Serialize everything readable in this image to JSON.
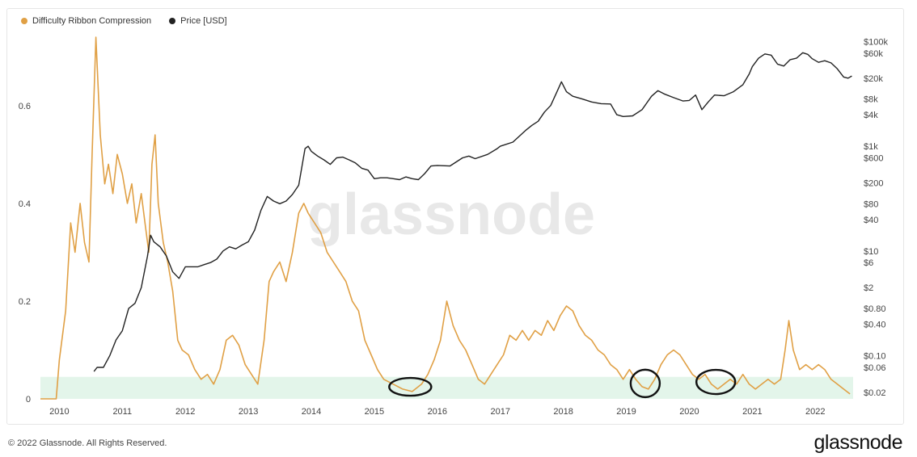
{
  "brand": {
    "watermark": "glassnode",
    "logo": "glassnode",
    "copyright": "© 2022 Glassnode. All Rights Reserved."
  },
  "colors": {
    "ribbon": "#e0a045",
    "price": "#222222",
    "band": "#e3f5ea",
    "circle": "#111111"
  },
  "chart_data": {
    "type": "line",
    "legend_position": "top-left",
    "grid": false,
    "x_range": [
      2009.7,
      2022.6
    ],
    "x_ticks": [
      "2010",
      "2011",
      "2012",
      "2013",
      "2014",
      "2015",
      "2016",
      "2017",
      "2018",
      "2019",
      "2020",
      "2021",
      "2022"
    ],
    "y_left": {
      "range": [
        0,
        0.75
      ],
      "ticks": [
        "0",
        "0.2",
        "0.4",
        "0.6"
      ]
    },
    "y_right": {
      "scale": "log",
      "range": [
        0.015,
        150000
      ],
      "ticks": [
        "$100k",
        "$60k",
        "$20k",
        "$8k",
        "$4k",
        "$1k",
        "$600",
        "$200",
        "$80",
        "$40",
        "$10",
        "$6",
        "$2",
        "$0.80",
        "$0.40",
        "$0.10",
        "$0.06",
        "$0.02"
      ]
    },
    "band": {
      "from": 0,
      "to": 0.045
    },
    "highlights": [
      {
        "x": 2015.57,
        "y": 0.018
      },
      {
        "x": 2019.3,
        "y": 0.025
      },
      {
        "x": 2020.42,
        "y": 0.028
      }
    ],
    "series": [
      {
        "name": "Difficulty Ribbon Compression",
        "axis": "left",
        "points": [
          [
            2009.7,
            0
          ],
          [
            2009.95,
            0
          ],
          [
            2010.0,
            0.08
          ],
          [
            2010.1,
            0.18
          ],
          [
            2010.18,
            0.36
          ],
          [
            2010.25,
            0.3
          ],
          [
            2010.33,
            0.4
          ],
          [
            2010.4,
            0.32
          ],
          [
            2010.47,
            0.28
          ],
          [
            2010.52,
            0.5
          ],
          [
            2010.58,
            0.74
          ],
          [
            2010.65,
            0.54
          ],
          [
            2010.72,
            0.44
          ],
          [
            2010.78,
            0.48
          ],
          [
            2010.85,
            0.42
          ],
          [
            2010.92,
            0.5
          ],
          [
            2011.0,
            0.46
          ],
          [
            2011.08,
            0.4
          ],
          [
            2011.15,
            0.44
          ],
          [
            2011.22,
            0.36
          ],
          [
            2011.3,
            0.42
          ],
          [
            2011.36,
            0.36
          ],
          [
            2011.42,
            0.3
          ],
          [
            2011.47,
            0.48
          ],
          [
            2011.52,
            0.54
          ],
          [
            2011.57,
            0.4
          ],
          [
            2011.65,
            0.32
          ],
          [
            2011.72,
            0.28
          ],
          [
            2011.8,
            0.22
          ],
          [
            2011.88,
            0.12
          ],
          [
            2011.95,
            0.1
          ],
          [
            2012.05,
            0.09
          ],
          [
            2012.15,
            0.06
          ],
          [
            2012.25,
            0.04
          ],
          [
            2012.35,
            0.05
          ],
          [
            2012.45,
            0.03
          ],
          [
            2012.55,
            0.06
          ],
          [
            2012.65,
            0.12
          ],
          [
            2012.75,
            0.13
          ],
          [
            2012.85,
            0.11
          ],
          [
            2012.95,
            0.07
          ],
          [
            2013.05,
            0.05
          ],
          [
            2013.15,
            0.03
          ],
          [
            2013.25,
            0.12
          ],
          [
            2013.33,
            0.24
          ],
          [
            2013.4,
            0.26
          ],
          [
            2013.5,
            0.28
          ],
          [
            2013.6,
            0.24
          ],
          [
            2013.7,
            0.3
          ],
          [
            2013.8,
            0.38
          ],
          [
            2013.88,
            0.4
          ],
          [
            2013.95,
            0.38
          ],
          [
            2014.05,
            0.36
          ],
          [
            2014.15,
            0.34
          ],
          [
            2014.25,
            0.3
          ],
          [
            2014.35,
            0.28
          ],
          [
            2014.45,
            0.26
          ],
          [
            2014.55,
            0.24
          ],
          [
            2014.65,
            0.2
          ],
          [
            2014.75,
            0.18
          ],
          [
            2014.85,
            0.12
          ],
          [
            2014.95,
            0.09
          ],
          [
            2015.05,
            0.06
          ],
          [
            2015.15,
            0.04
          ],
          [
            2015.3,
            0.03
          ],
          [
            2015.45,
            0.02
          ],
          [
            2015.6,
            0.015
          ],
          [
            2015.75,
            0.03
          ],
          [
            2015.85,
            0.05
          ],
          [
            2015.95,
            0.08
          ],
          [
            2016.05,
            0.12
          ],
          [
            2016.15,
            0.2
          ],
          [
            2016.25,
            0.15
          ],
          [
            2016.35,
            0.12
          ],
          [
            2016.45,
            0.1
          ],
          [
            2016.55,
            0.07
          ],
          [
            2016.65,
            0.04
          ],
          [
            2016.75,
            0.03
          ],
          [
            2016.85,
            0.05
          ],
          [
            2016.95,
            0.07
          ],
          [
            2017.05,
            0.09
          ],
          [
            2017.15,
            0.13
          ],
          [
            2017.25,
            0.12
          ],
          [
            2017.35,
            0.14
          ],
          [
            2017.45,
            0.12
          ],
          [
            2017.55,
            0.14
          ],
          [
            2017.65,
            0.13
          ],
          [
            2017.75,
            0.16
          ],
          [
            2017.85,
            0.14
          ],
          [
            2017.95,
            0.17
          ],
          [
            2018.05,
            0.19
          ],
          [
            2018.15,
            0.18
          ],
          [
            2018.25,
            0.15
          ],
          [
            2018.35,
            0.13
          ],
          [
            2018.45,
            0.12
          ],
          [
            2018.55,
            0.1
          ],
          [
            2018.65,
            0.09
          ],
          [
            2018.75,
            0.07
          ],
          [
            2018.85,
            0.06
          ],
          [
            2018.95,
            0.04
          ],
          [
            2019.05,
            0.06
          ],
          [
            2019.15,
            0.04
          ],
          [
            2019.25,
            0.025
          ],
          [
            2019.35,
            0.02
          ],
          [
            2019.45,
            0.04
          ],
          [
            2019.55,
            0.07
          ],
          [
            2019.65,
            0.09
          ],
          [
            2019.75,
            0.1
          ],
          [
            2019.85,
            0.09
          ],
          [
            2019.95,
            0.07
          ],
          [
            2020.05,
            0.05
          ],
          [
            2020.15,
            0.04
          ],
          [
            2020.25,
            0.05
          ],
          [
            2020.35,
            0.03
          ],
          [
            2020.45,
            0.02
          ],
          [
            2020.55,
            0.03
          ],
          [
            2020.65,
            0.04
          ],
          [
            2020.75,
            0.03
          ],
          [
            2020.85,
            0.05
          ],
          [
            2020.95,
            0.03
          ],
          [
            2021.05,
            0.02
          ],
          [
            2021.15,
            0.03
          ],
          [
            2021.25,
            0.04
          ],
          [
            2021.35,
            0.03
          ],
          [
            2021.45,
            0.04
          ],
          [
            2021.52,
            0.1
          ],
          [
            2021.58,
            0.16
          ],
          [
            2021.65,
            0.1
          ],
          [
            2021.75,
            0.06
          ],
          [
            2021.85,
            0.07
          ],
          [
            2021.95,
            0.06
          ],
          [
            2022.05,
            0.07
          ],
          [
            2022.15,
            0.06
          ],
          [
            2022.25,
            0.04
          ],
          [
            2022.35,
            0.03
          ],
          [
            2022.45,
            0.02
          ],
          [
            2022.55,
            0.01
          ]
        ]
      },
      {
        "name": "Price [USD]",
        "axis": "right",
        "points": [
          [
            2010.55,
            0.05
          ],
          [
            2010.6,
            0.06
          ],
          [
            2010.7,
            0.06
          ],
          [
            2010.8,
            0.1
          ],
          [
            2010.9,
            0.2
          ],
          [
            2011.0,
            0.3
          ],
          [
            2011.1,
            0.8
          ],
          [
            2011.2,
            1.0
          ],
          [
            2011.3,
            2.0
          ],
          [
            2011.4,
            8.0
          ],
          [
            2011.45,
            20
          ],
          [
            2011.5,
            15
          ],
          [
            2011.6,
            12
          ],
          [
            2011.7,
            8
          ],
          [
            2011.8,
            4
          ],
          [
            2011.9,
            3
          ],
          [
            2012.0,
            5
          ],
          [
            2012.1,
            5
          ],
          [
            2012.2,
            5
          ],
          [
            2012.3,
            5.5
          ],
          [
            2012.4,
            6
          ],
          [
            2012.5,
            7
          ],
          [
            2012.6,
            10
          ],
          [
            2012.7,
            12
          ],
          [
            2012.8,
            11
          ],
          [
            2012.9,
            13
          ],
          [
            2013.0,
            15
          ],
          [
            2013.1,
            25
          ],
          [
            2013.2,
            60
          ],
          [
            2013.3,
            110
          ],
          [
            2013.4,
            90
          ],
          [
            2013.5,
            80
          ],
          [
            2013.6,
            90
          ],
          [
            2013.7,
            120
          ],
          [
            2013.8,
            180
          ],
          [
            2013.9,
            900
          ],
          [
            2013.95,
            1000
          ],
          [
            2014.0,
            800
          ],
          [
            2014.1,
            650
          ],
          [
            2014.2,
            550
          ],
          [
            2014.3,
            450
          ],
          [
            2014.4,
            600
          ],
          [
            2014.5,
            620
          ],
          [
            2014.6,
            550
          ],
          [
            2014.7,
            480
          ],
          [
            2014.8,
            380
          ],
          [
            2014.9,
            350
          ],
          [
            2015.0,
            240
          ],
          [
            2015.1,
            250
          ],
          [
            2015.2,
            250
          ],
          [
            2015.3,
            240
          ],
          [
            2015.4,
            230
          ],
          [
            2015.5,
            260
          ],
          [
            2015.6,
            240
          ],
          [
            2015.7,
            230
          ],
          [
            2015.8,
            300
          ],
          [
            2015.9,
            420
          ],
          [
            2016.0,
            430
          ],
          [
            2016.2,
            420
          ],
          [
            2016.4,
            600
          ],
          [
            2016.5,
            650
          ],
          [
            2016.6,
            580
          ],
          [
            2016.8,
            700
          ],
          [
            2016.95,
            900
          ],
          [
            2017.0,
            1000
          ],
          [
            2017.2,
            1200
          ],
          [
            2017.4,
            2000
          ],
          [
            2017.5,
            2500
          ],
          [
            2017.6,
            3000
          ],
          [
            2017.7,
            4500
          ],
          [
            2017.8,
            6000
          ],
          [
            2017.9,
            11000
          ],
          [
            2017.97,
            17000
          ],
          [
            2018.05,
            11000
          ],
          [
            2018.15,
            9000
          ],
          [
            2018.3,
            8000
          ],
          [
            2018.45,
            7000
          ],
          [
            2018.6,
            6500
          ],
          [
            2018.75,
            6400
          ],
          [
            2018.85,
            4000
          ],
          [
            2018.95,
            3700
          ],
          [
            2019.1,
            3800
          ],
          [
            2019.25,
            5000
          ],
          [
            2019.4,
            9000
          ],
          [
            2019.5,
            11500
          ],
          [
            2019.6,
            10000
          ],
          [
            2019.75,
            8500
          ],
          [
            2019.9,
            7300
          ],
          [
            2020.0,
            7500
          ],
          [
            2020.1,
            9500
          ],
          [
            2020.2,
            5000
          ],
          [
            2020.3,
            7000
          ],
          [
            2020.4,
            9500
          ],
          [
            2020.55,
            9200
          ],
          [
            2020.7,
            11000
          ],
          [
            2020.85,
            15000
          ],
          [
            2020.95,
            24000
          ],
          [
            2021.0,
            33000
          ],
          [
            2021.1,
            48000
          ],
          [
            2021.2,
            58000
          ],
          [
            2021.3,
            55000
          ],
          [
            2021.4,
            37000
          ],
          [
            2021.5,
            34000
          ],
          [
            2021.6,
            45000
          ],
          [
            2021.7,
            48000
          ],
          [
            2021.8,
            61000
          ],
          [
            2021.88,
            57000
          ],
          [
            2021.95,
            47000
          ],
          [
            2022.05,
            40000
          ],
          [
            2022.15,
            43000
          ],
          [
            2022.25,
            39000
          ],
          [
            2022.35,
            30000
          ],
          [
            2022.45,
            21000
          ],
          [
            2022.52,
            20000
          ],
          [
            2022.58,
            22000
          ]
        ]
      }
    ]
  }
}
